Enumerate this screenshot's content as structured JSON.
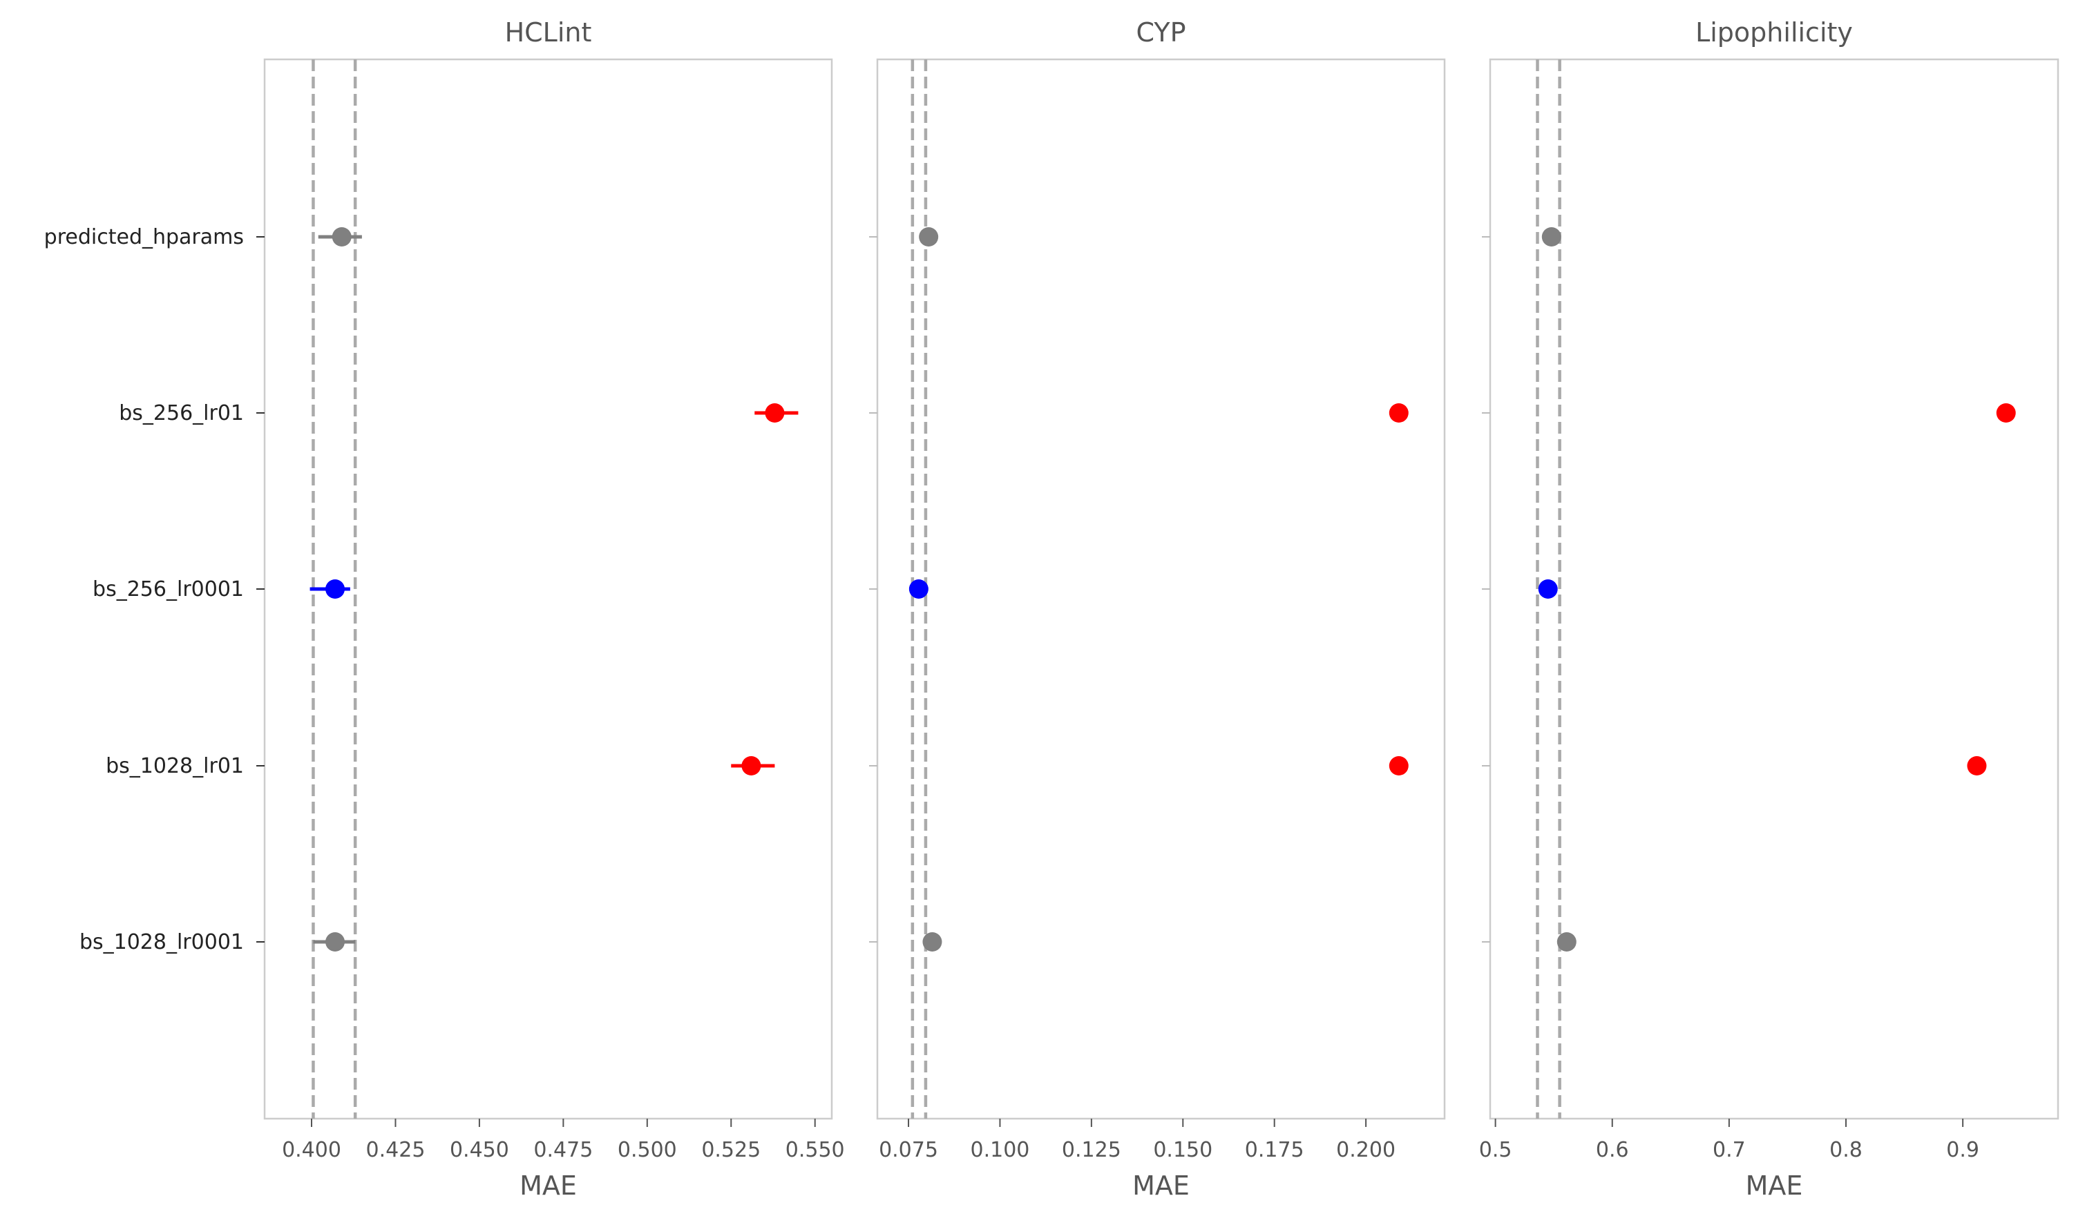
{
  "chart_data": [
    {
      "type": "scatter",
      "title": "HCLint",
      "xlabel": "MAE",
      "ylabel": "",
      "categories": [
        "predicted_hparams",
        "bs_256_lr01",
        "bs_256_lr0001",
        "bs_1028_lr01",
        "bs_1028_lr0001"
      ],
      "xlim": [
        0.386,
        0.555
      ],
      "xticks": [
        0.4,
        0.425,
        0.45,
        0.475,
        0.5,
        0.525,
        0.55
      ],
      "xtick_labels": [
        "0.400",
        "0.425",
        "0.450",
        "0.475",
        "0.500",
        "0.525",
        "0.550"
      ],
      "reference_lines": [
        0.4005,
        0.413
      ],
      "points": [
        {
          "category": "predicted_hparams",
          "value": 0.409,
          "err_low": 0.402,
          "err_high": 0.415,
          "color": "#808080"
        },
        {
          "category": "bs_256_lr01",
          "value": 0.538,
          "err_low": 0.532,
          "err_high": 0.545,
          "color": "#ff0000"
        },
        {
          "category": "bs_256_lr0001",
          "value": 0.407,
          "err_low": 0.3995,
          "err_high": 0.4115,
          "color": "#0000ff"
        },
        {
          "category": "bs_1028_lr01",
          "value": 0.531,
          "err_low": 0.525,
          "err_high": 0.538,
          "color": "#ff0000"
        },
        {
          "category": "bs_1028_lr0001",
          "value": 0.407,
          "err_low": 0.4005,
          "err_high": 0.413,
          "color": "#808080"
        }
      ]
    },
    {
      "type": "scatter",
      "title": "CYP",
      "xlabel": "MAE",
      "ylabel": "",
      "categories": [
        "predicted_hparams",
        "bs_256_lr01",
        "bs_256_lr0001",
        "bs_1028_lr01",
        "bs_1028_lr0001"
      ],
      "xlim": [
        0.0665,
        0.2215
      ],
      "xticks": [
        0.075,
        0.1,
        0.125,
        0.15,
        0.175,
        0.2
      ],
      "xtick_labels": [
        "0.075",
        "0.100",
        "0.125",
        "0.150",
        "0.175",
        "0.200"
      ],
      "reference_lines": [
        0.0761,
        0.0797
      ],
      "points": [
        {
          "category": "predicted_hparams",
          "value": 0.0805,
          "err_low": 0.0802,
          "err_high": 0.0808,
          "color": "#808080"
        },
        {
          "category": "bs_256_lr01",
          "value": 0.209,
          "err_low": 0.2088,
          "err_high": 0.2092,
          "color": "#ff0000"
        },
        {
          "category": "bs_256_lr0001",
          "value": 0.0778,
          "err_low": 0.0775,
          "err_high": 0.0781,
          "color": "#0000ff"
        },
        {
          "category": "bs_1028_lr01",
          "value": 0.209,
          "err_low": 0.2088,
          "err_high": 0.2092,
          "color": "#ff0000"
        },
        {
          "category": "bs_1028_lr0001",
          "value": 0.0815,
          "err_low": 0.0812,
          "err_high": 0.0818,
          "color": "#808080"
        }
      ]
    },
    {
      "type": "scatter",
      "title": "Lipophilicity",
      "xlabel": "MAE",
      "ylabel": "",
      "categories": [
        "predicted_hparams",
        "bs_256_lr01",
        "bs_256_lr0001",
        "bs_1028_lr01",
        "bs_1028_lr0001"
      ],
      "xlim": [
        0.4955,
        0.9815
      ],
      "xticks": [
        0.5,
        0.6,
        0.7,
        0.8,
        0.9
      ],
      "xtick_labels": [
        "0.5",
        "0.6",
        "0.7",
        "0.8",
        "0.9"
      ],
      "reference_lines": [
        0.536,
        0.555
      ],
      "points": [
        {
          "category": "predicted_hparams",
          "value": 0.548,
          "err_low": 0.545,
          "err_high": 0.551,
          "color": "#808080"
        },
        {
          "category": "bs_256_lr01",
          "value": 0.937,
          "err_low": 0.933,
          "err_high": 0.941,
          "color": "#ff0000"
        },
        {
          "category": "bs_256_lr0001",
          "value": 0.545,
          "err_low": 0.542,
          "err_high": 0.548,
          "color": "#0000ff"
        },
        {
          "category": "bs_1028_lr01",
          "value": 0.912,
          "err_low": 0.907,
          "err_high": 0.917,
          "color": "#ff0000"
        },
        {
          "category": "bs_1028_lr0001",
          "value": 0.561,
          "err_low": 0.558,
          "err_high": 0.564,
          "color": "#808080"
        }
      ]
    }
  ]
}
